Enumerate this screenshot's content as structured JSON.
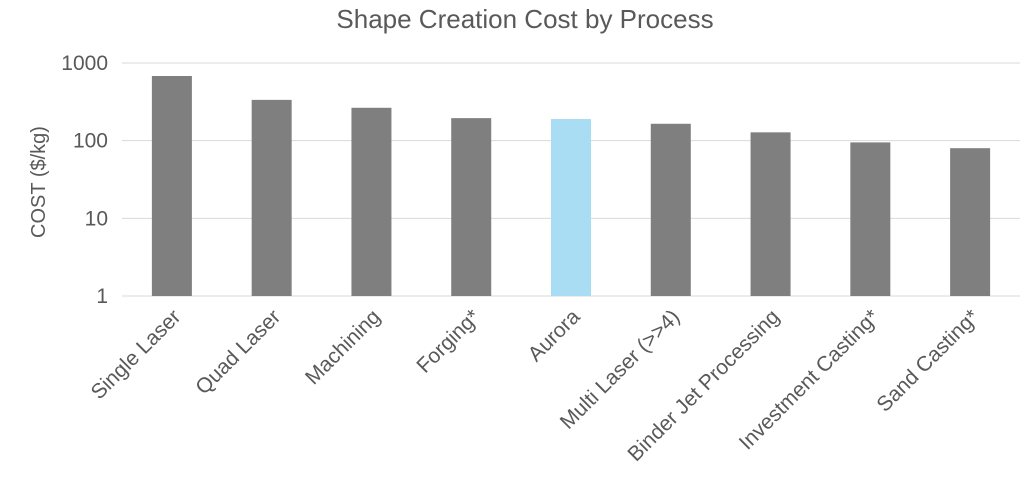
{
  "chart_data": {
    "type": "bar",
    "title": "Shape Creation Cost by Process",
    "xlabel": "",
    "ylabel": "COST  ($/kg)",
    "scale": "log",
    "ylim": [
      1,
      1000
    ],
    "yticks": [
      "1",
      "10",
      "100",
      "1000"
    ],
    "grid": true,
    "legend": "none",
    "categories": [
      "Single Laser",
      "Quad Laser",
      "Machining",
      "Forging*",
      "Aurora",
      "Multi Laser (>>4)",
      "Binder Jet Processing",
      "Investment Casting*",
      "Sand Casting*"
    ],
    "series": [
      {
        "values": [
          680,
          335,
          265,
          195,
          190,
          165,
          128,
          95,
          80
        ]
      }
    ],
    "colors": {
      "default": "#7f7f7f",
      "highlight": "#a9ddf3",
      "grid": "#d9d9d9"
    },
    "highlight_category": "Aurora"
  }
}
